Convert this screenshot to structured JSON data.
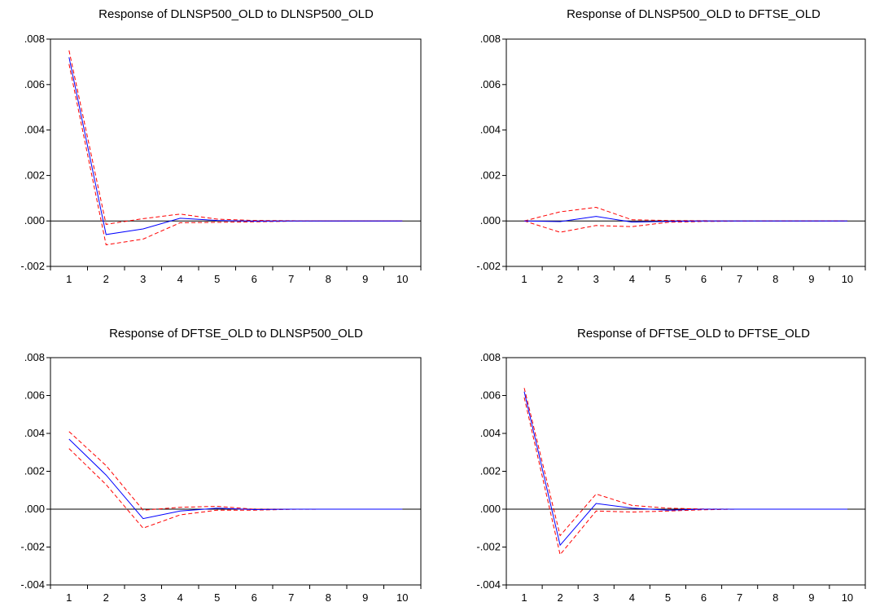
{
  "charts": [
    {
      "type": "line",
      "title": "Response of DLNSP500_OLD to DLNSP500_OLD",
      "x": [
        1,
        2,
        3,
        4,
        5,
        6,
        7,
        8,
        9,
        10
      ],
      "ylim": [
        -0.002,
        0.008
      ],
      "yticks": [
        -0.002,
        0.0,
        0.002,
        0.004,
        0.006,
        0.008
      ],
      "ytick_labels": [
        "-.002",
        ".000",
        ".002",
        ".004",
        ".006",
        ".008"
      ],
      "grid": false,
      "zero_line": true,
      "series": [
        {
          "role": "response",
          "color": "#0000ff",
          "dashed": false,
          "values": [
            0.0072,
            -0.0006,
            -0.00035,
            0.00012,
            2e-05,
            -1e-05,
            0.0,
            0.0,
            0.0,
            0.0
          ]
        },
        {
          "role": "upper",
          "color": "#ff0000",
          "dashed": true,
          "values": [
            0.0075,
            -0.00015,
            0.0001,
            0.0003,
            8e-05,
            2e-05,
            1e-05,
            0.0,
            0.0,
            0.0
          ]
        },
        {
          "role": "lower",
          "color": "#ff0000",
          "dashed": true,
          "values": [
            0.0069,
            -0.00105,
            -0.0008,
            -8e-05,
            -6e-05,
            -4e-05,
            -1e-05,
            0.0,
            0.0,
            0.0
          ]
        }
      ]
    },
    {
      "type": "line",
      "title": "Response of DLNSP500_OLD to DFTSE_OLD",
      "x": [
        1,
        2,
        3,
        4,
        5,
        6,
        7,
        8,
        9,
        10
      ],
      "ylim": [
        -0.002,
        0.008
      ],
      "yticks": [
        -0.002,
        0.0,
        0.002,
        0.004,
        0.006,
        0.008
      ],
      "ytick_labels": [
        "-.002",
        ".000",
        ".002",
        ".004",
        ".006",
        ".008"
      ],
      "grid": false,
      "zero_line": true,
      "series": [
        {
          "role": "response",
          "color": "#0000ff",
          "dashed": false,
          "values": [
            0.0,
            -3e-05,
            0.0002,
            -5e-05,
            -2e-05,
            0.0,
            0.0,
            0.0,
            0.0,
            0.0
          ]
        },
        {
          "role": "upper",
          "color": "#ff0000",
          "dashed": true,
          "values": [
            0.0,
            0.0004,
            0.0006,
            5e-05,
            2e-05,
            1e-05,
            0.0,
            0.0,
            0.0,
            0.0
          ]
        },
        {
          "role": "lower",
          "color": "#ff0000",
          "dashed": true,
          "values": [
            0.0,
            -0.0005,
            -0.0002,
            -0.00025,
            -6e-05,
            -2e-05,
            -1e-05,
            0.0,
            0.0,
            0.0
          ]
        }
      ]
    },
    {
      "type": "line",
      "title": "Response of DFTSE_OLD to DLNSP500_OLD",
      "x": [
        1,
        2,
        3,
        4,
        5,
        6,
        7,
        8,
        9,
        10
      ],
      "ylim": [
        -0.004,
        0.008
      ],
      "yticks": [
        -0.004,
        -0.002,
        0.0,
        0.002,
        0.004,
        0.006,
        0.008
      ],
      "ytick_labels": [
        "-.004",
        "-.002",
        ".000",
        ".002",
        ".004",
        ".006",
        ".008"
      ],
      "grid": false,
      "zero_line": true,
      "series": [
        {
          "role": "response",
          "color": "#0000ff",
          "dashed": false,
          "values": [
            0.0037,
            0.0018,
            -0.0005,
            -0.0001,
            5e-05,
            -2e-05,
            0.0,
            0.0,
            0.0,
            0.0
          ]
        },
        {
          "role": "upper",
          "color": "#ff0000",
          "dashed": true,
          "values": [
            0.0041,
            0.0023,
            -5e-05,
            0.0001,
            0.00015,
            0.0,
            0.0,
            0.0,
            0.0,
            0.0
          ]
        },
        {
          "role": "lower",
          "color": "#ff0000",
          "dashed": true,
          "values": [
            0.0032,
            0.0013,
            -0.001,
            -0.0003,
            -5e-05,
            -5e-05,
            -1e-05,
            0.0,
            0.0,
            0.0
          ]
        }
      ]
    },
    {
      "type": "line",
      "title": "Response of DFTSE_OLD to DFTSE_OLD",
      "x": [
        1,
        2,
        3,
        4,
        5,
        6,
        7,
        8,
        9,
        10
      ],
      "ylim": [
        -0.004,
        0.008
      ],
      "yticks": [
        -0.004,
        -0.002,
        0.0,
        0.002,
        0.004,
        0.006,
        0.008
      ],
      "ytick_labels": [
        "-.004",
        "-.002",
        ".000",
        ".002",
        ".004",
        ".006",
        ".008"
      ],
      "grid": false,
      "zero_line": true,
      "series": [
        {
          "role": "response",
          "color": "#0000ff",
          "dashed": false,
          "values": [
            0.0062,
            -0.0019,
            0.0003,
            5e-05,
            -5e-05,
            0.0,
            0.0,
            0.0,
            0.0,
            0.0
          ]
        },
        {
          "role": "upper",
          "color": "#ff0000",
          "dashed": true,
          "values": [
            0.0064,
            -0.0014,
            0.0008,
            0.0002,
            5e-05,
            1e-05,
            0.0,
            0.0,
            0.0,
            0.0
          ]
        },
        {
          "role": "lower",
          "color": "#ff0000",
          "dashed": true,
          "values": [
            0.0059,
            -0.0024,
            -0.0001,
            -0.00015,
            -0.0001,
            -3e-05,
            0.0,
            0.0,
            0.0,
            0.0
          ]
        }
      ]
    }
  ],
  "chart_data": [
    {
      "type": "line",
      "title": "Response of DLNSP500_OLD to DLNSP500_OLD",
      "x": [
        1,
        2,
        3,
        4,
        5,
        6,
        7,
        8,
        9,
        10
      ],
      "ylim": [
        -0.002,
        0.008
      ],
      "series": [
        {
          "values": [
            0.0072,
            -0.0006,
            -0.00035,
            0.00012,
            2e-05,
            -1e-05,
            0.0,
            0.0,
            0.0,
            0.0
          ]
        },
        {
          "values": [
            0.0075,
            -0.00015,
            0.0001,
            0.0003,
            8e-05,
            2e-05,
            1e-05,
            0.0,
            0.0,
            0.0
          ]
        },
        {
          "values": [
            0.0069,
            -0.00105,
            -0.0008,
            -8e-05,
            -6e-05,
            -4e-05,
            -1e-05,
            0.0,
            0.0,
            0.0
          ]
        }
      ]
    },
    {
      "type": "line",
      "title": "Response of DLNSP500_OLD to DFTSE_OLD",
      "x": [
        1,
        2,
        3,
        4,
        5,
        6,
        7,
        8,
        9,
        10
      ],
      "ylim": [
        -0.002,
        0.008
      ],
      "series": [
        {
          "values": [
            0.0,
            -3e-05,
            0.0002,
            -5e-05,
            -2e-05,
            0.0,
            0.0,
            0.0,
            0.0,
            0.0
          ]
        },
        {
          "values": [
            0.0,
            0.0004,
            0.0006,
            5e-05,
            2e-05,
            1e-05,
            0.0,
            0.0,
            0.0,
            0.0
          ]
        },
        {
          "values": [
            0.0,
            -0.0005,
            -0.0002,
            -0.00025,
            -6e-05,
            -2e-05,
            -1e-05,
            0.0,
            0.0,
            0.0
          ]
        }
      ]
    },
    {
      "type": "line",
      "title": "Response of DFTSE_OLD to DLNSP500_OLD",
      "x": [
        1,
        2,
        3,
        4,
        5,
        6,
        7,
        8,
        9,
        10
      ],
      "ylim": [
        -0.004,
        0.008
      ],
      "series": [
        {
          "values": [
            0.0037,
            0.0018,
            -0.0005,
            -0.0001,
            5e-05,
            -2e-05,
            0.0,
            0.0,
            0.0,
            0.0
          ]
        },
        {
          "values": [
            0.0041,
            0.0023,
            -5e-05,
            0.0001,
            0.00015,
            0.0,
            0.0,
            0.0,
            0.0,
            0.0
          ]
        },
        {
          "values": [
            0.0032,
            0.0013,
            -0.001,
            -0.0003,
            -5e-05,
            -5e-05,
            -1e-05,
            0.0,
            0.0,
            0.0
          ]
        }
      ]
    },
    {
      "type": "line",
      "title": "Response of DFTSE_OLD to DFTSE_OLD",
      "x": [
        1,
        2,
        3,
        4,
        5,
        6,
        7,
        8,
        9,
        10
      ],
      "ylim": [
        -0.004,
        0.008
      ],
      "series": [
        {
          "values": [
            0.0062,
            -0.0019,
            0.0003,
            5e-05,
            -5e-05,
            0.0,
            0.0,
            0.0,
            0.0,
            0.0
          ]
        },
        {
          "values": [
            0.0064,
            -0.0014,
            0.0008,
            0.0002,
            5e-05,
            1e-05,
            0.0,
            0.0,
            0.0,
            0.0
          ]
        },
        {
          "values": [
            0.0059,
            -0.0024,
            -0.0001,
            -0.00015,
            -0.0001,
            -3e-05,
            0.0,
            0.0,
            0.0,
            0.0
          ]
        }
      ]
    }
  ]
}
